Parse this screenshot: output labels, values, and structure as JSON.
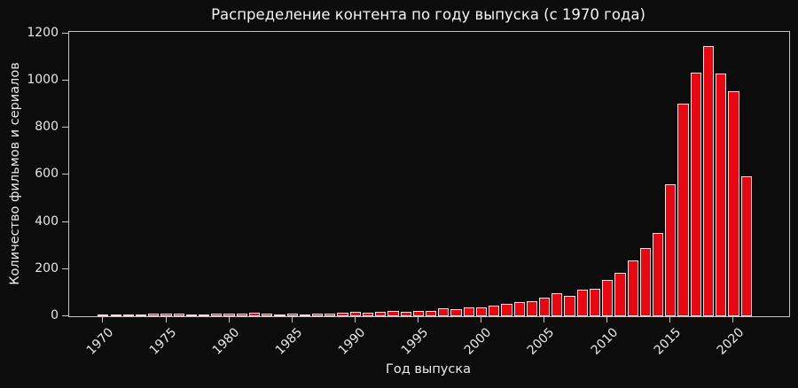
{
  "chart_data": {
    "type": "bar",
    "title": "Распределение контента по году выпуска (с 1970 года)",
    "xlabel": "Год выпуска",
    "ylabel": "Количество фильмов и сериалов",
    "categories": [
      1970,
      1971,
      1972,
      1973,
      1974,
      1975,
      1976,
      1977,
      1978,
      1979,
      1980,
      1981,
      1982,
      1983,
      1984,
      1985,
      1986,
      1987,
      1988,
      1989,
      1990,
      1991,
      1992,
      1993,
      1994,
      1995,
      1996,
      1997,
      1998,
      1999,
      2000,
      2001,
      2002,
      2003,
      2004,
      2005,
      2006,
      2007,
      2008,
      2009,
      2010,
      2011,
      2012,
      2013,
      2014,
      2015,
      2016,
      2017,
      2018,
      2019,
      2020,
      2021
    ],
    "values": [
      9,
      5,
      6,
      9,
      11,
      11,
      11,
      8,
      8,
      11,
      12,
      11,
      16,
      10,
      9,
      13,
      9,
      10,
      11,
      14,
      18,
      14,
      18,
      23,
      19,
      23,
      21,
      32,
      30,
      39,
      37,
      45,
      51,
      61,
      64,
      80,
      96,
      88,
      113,
      118,
      154,
      185,
      237,
      288,
      352,
      560,
      902,
      1032,
      1147,
      1030,
      953,
      592
    ],
    "xticks": [
      1970,
      1975,
      1980,
      1985,
      1990,
      1995,
      2000,
      2005,
      2010,
      2015,
      2020
    ],
    "yticks": [
      0,
      200,
      400,
      600,
      800,
      1000,
      1200
    ],
    "xlim": [
      1967.3,
      2024.4
    ],
    "ylim": [
      0,
      1206
    ],
    "bar_width_years": 0.86,
    "grid": false,
    "legend_position": "none",
    "colors": {
      "background": "#0c0c0c",
      "bar_fill": "#e50914",
      "bar_edge": "rgba(255,255,255,0.85)",
      "spine": "#c4c4c4",
      "text": "#ececec",
      "title_text": "#f5f5f5"
    }
  }
}
